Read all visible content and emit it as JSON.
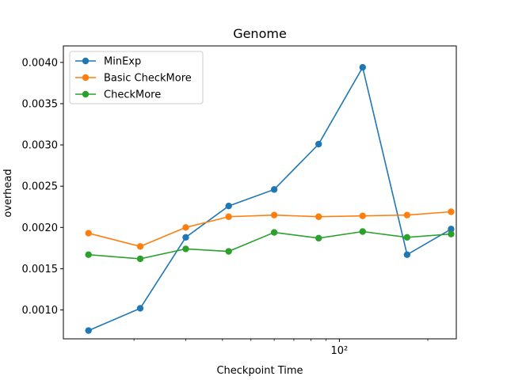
{
  "chart_data": {
    "type": "line",
    "title": "Genome",
    "xlabel": "Checkpoint Time",
    "ylabel": "overhead",
    "xscale": "log",
    "xlim": [
      11.5,
      250
    ],
    "ylim": [
      0.00065,
      0.0042
    ],
    "x": [
      14,
      21,
      30,
      42,
      60,
      85,
      120,
      170,
      240
    ],
    "yticks": [
      0.001,
      0.0015,
      0.002,
      0.0025,
      0.003,
      0.0035,
      0.004
    ],
    "ytick_labels": [
      "0.0010",
      "0.0015",
      "0.0020",
      "0.0025",
      "0.0030",
      "0.0035",
      "0.0040"
    ],
    "xtick_major": [
      100
    ],
    "xtick_major_labels": [
      "10²"
    ],
    "xtick_minor": [
      20,
      30,
      40,
      50,
      60,
      70,
      80,
      90,
      200
    ],
    "grid": false,
    "legend_position": "top-left",
    "series": [
      {
        "name": "MinExp",
        "color": "#1f77b4",
        "values": [
          0.00075,
          0.00102,
          0.00188,
          0.00226,
          0.00246,
          0.00301,
          0.00394,
          0.00167,
          0.00198
        ]
      },
      {
        "name": "Basic CheckMore",
        "color": "#ff7f0e",
        "values": [
          0.00193,
          0.00177,
          0.002,
          0.00213,
          0.00215,
          0.00213,
          0.00214,
          0.00215,
          0.00219
        ]
      },
      {
        "name": "CheckMore",
        "color": "#2ca02c",
        "values": [
          0.00167,
          0.00162,
          0.00174,
          0.00171,
          0.00194,
          0.00187,
          0.00195,
          0.00188,
          0.00192
        ]
      }
    ]
  }
}
